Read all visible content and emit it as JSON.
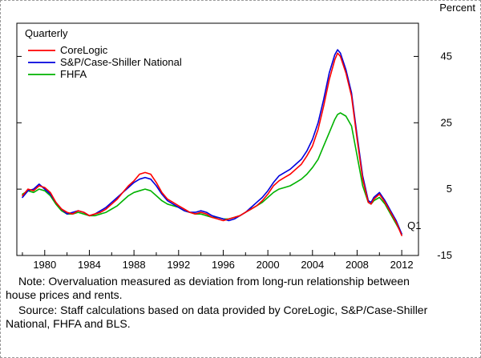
{
  "annotations": {
    "quarterly": "Quarterly",
    "q1": "Q1"
  },
  "notes": {
    "note": "Note: Overvaluation measured as deviation from long-run relationship between house prices and rents.",
    "source": "Source: Staff calculations based on data provided by CoreLogic, S&P/Case-Shiller National, FHFA and BLS."
  },
  "chart_data": {
    "type": "line",
    "title": "",
    "ylabel": "Percent",
    "xlim": [
      1977.5,
      2013.5
    ],
    "ylim": [
      -15,
      55
    ],
    "yticks": [
      45,
      25,
      5,
      -15
    ],
    "xticks_labeled": [
      1980,
      1984,
      1988,
      1992,
      1996,
      2000,
      2004,
      2008,
      2012
    ],
    "xticks_minor_step": 2,
    "legend_position": "top-left",
    "grid": false,
    "axis_color": "#000000",
    "x": [
      1978,
      1978.5,
      1979,
      1979.5,
      1980,
      1980.5,
      1981,
      1981.5,
      1982,
      1982.5,
      1983,
      1983.5,
      1984,
      1984.5,
      1985,
      1985.5,
      1986,
      1986.5,
      1987,
      1987.5,
      1988,
      1988.5,
      1989,
      1989.5,
      1990,
      1990.5,
      1991,
      1991.5,
      1992,
      1992.5,
      1993,
      1993.5,
      1994,
      1994.5,
      1995,
      1995.5,
      1996,
      1996.5,
      1997,
      1997.5,
      1998,
      1998.5,
      1999,
      1999.5,
      2000,
      2000.5,
      2001,
      2001.5,
      2002,
      2002.5,
      2003,
      2003.5,
      2004,
      2004.5,
      2005,
      2005.5,
      2006,
      2006.25,
      2006.5,
      2007,
      2007.5,
      2008,
      2008.5,
      2009,
      2009.25,
      2009.5,
      2010,
      2010.5,
      2011,
      2011.5,
      2012
    ],
    "series": [
      {
        "name": "CoreLogic",
        "color": "#ff0000",
        "values": [
          3,
          5,
          4.5,
          6,
          5.5,
          4,
          1,
          -1,
          -2,
          -2.5,
          -1.5,
          -2,
          -3,
          -2.5,
          -2,
          -1,
          0.5,
          2,
          4,
          6,
          7.5,
          9.5,
          10,
          9.5,
          7,
          4,
          2,
          1,
          0,
          -1,
          -2,
          -2.5,
          -2,
          -2.5,
          -3.5,
          -4,
          -4.5,
          -4,
          -3.5,
          -3,
          -2,
          -1,
          0,
          1.5,
          3.5,
          6,
          7.5,
          8.5,
          9.5,
          11,
          12.5,
          15,
          18,
          23,
          30,
          38,
          44,
          46,
          45,
          40,
          33,
          20,
          8,
          1,
          0.5,
          2,
          3.5,
          1,
          -2,
          -5,
          -9
        ]
      },
      {
        "name": "S&P/Case-Shiller National",
        "color": "#0000dd",
        "values": [
          2.5,
          4.5,
          5,
          6.5,
          5,
          3.5,
          1,
          -1,
          -2.5,
          -2,
          -1.5,
          -2,
          -3,
          -2.5,
          -1.5,
          -0.5,
          1,
          2.5,
          4,
          5.5,
          7,
          8,
          8.5,
          8,
          6,
          3.5,
          1.5,
          0.5,
          -0.5,
          -1.5,
          -2,
          -2,
          -1.5,
          -2,
          -3,
          -3.5,
          -4,
          -4.5,
          -4,
          -3,
          -2,
          -0.5,
          1,
          2.5,
          4.5,
          7,
          9,
          10,
          11,
          12.5,
          14,
          16.5,
          20,
          25,
          32,
          40,
          45.5,
          47,
          46,
          41,
          34,
          21,
          9,
          1.5,
          1,
          2.5,
          4,
          1.5,
          -1.5,
          -4.5,
          -8.5
        ]
      },
      {
        "name": "FHFA",
        "color": "#00b200",
        "values": [
          3.5,
          4.5,
          4,
          5,
          4.5,
          3,
          0.5,
          -1.5,
          -2.5,
          -2.5,
          -2,
          -2.5,
          -3,
          -3,
          -2.5,
          -2,
          -1,
          0,
          1.5,
          3,
          4,
          4.5,
          5,
          4.5,
          3,
          1.5,
          0.5,
          0,
          -0.5,
          -1.5,
          -2,
          -2.5,
          -2.5,
          -3,
          -3.5,
          -3.5,
          -4,
          -4,
          -3.5,
          -3,
          -2,
          -1,
          0,
          1,
          2.5,
          4,
          5,
          5.5,
          6,
          7,
          8,
          9.5,
          11.5,
          14,
          18,
          22,
          26,
          27.5,
          28,
          27,
          24,
          15,
          6,
          1,
          0.5,
          1.5,
          2.5,
          0.5,
          -2.5,
          -5.5,
          -8.5
        ]
      }
    ],
    "point_annotations": [
      {
        "text": "Q1",
        "x": 2012,
        "y": -7
      }
    ]
  }
}
